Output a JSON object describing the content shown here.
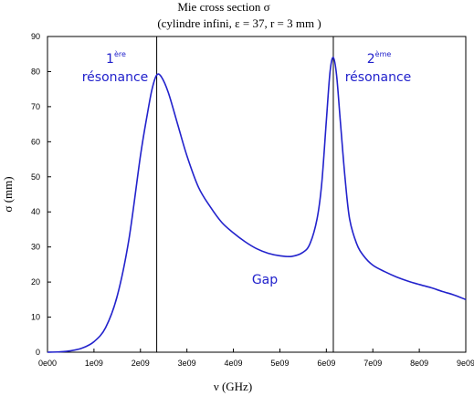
{
  "chart_data": {
    "type": "line",
    "title": "Mie cross section σ",
    "subtitle": "(cylindre infini,  ε = 37, r  = 3 mm )",
    "xlabel": "ν (GHz)",
    "ylabel": "σ (mm)",
    "xlim": [
      0,
      9000000000
    ],
    "ylim": [
      0,
      90
    ],
    "x_ticks": [
      {
        "value": 0,
        "label": "0e00"
      },
      {
        "value": 1000000000,
        "label": "1e09"
      },
      {
        "value": 2000000000,
        "label": "2e09"
      },
      {
        "value": 3000000000,
        "label": "3e09"
      },
      {
        "value": 4000000000,
        "label": "4e09"
      },
      {
        "value": 5000000000,
        "label": "5e09"
      },
      {
        "value": 6000000000,
        "label": "6e09"
      },
      {
        "value": 7000000000,
        "label": "7e09"
      },
      {
        "value": 8000000000,
        "label": "8e09"
      },
      {
        "value": 9000000000,
        "label": "9e09"
      }
    ],
    "y_ticks": [
      {
        "value": 0,
        "label": "0"
      },
      {
        "value": 10,
        "label": "10"
      },
      {
        "value": 20,
        "label": "20"
      },
      {
        "value": 30,
        "label": "30"
      },
      {
        "value": 40,
        "label": "40"
      },
      {
        "value": 50,
        "label": "50"
      },
      {
        "value": 60,
        "label": "60"
      },
      {
        "value": 70,
        "label": "70"
      },
      {
        "value": 80,
        "label": "80"
      },
      {
        "value": 90,
        "label": "90"
      }
    ],
    "grid": false,
    "series": [
      {
        "color": "#2222cc",
        "x": [
          0,
          250000000,
          500000000,
          750000000,
          1000000000,
          1250000000,
          1500000000,
          1750000000,
          2000000000,
          2150000000,
          2250000000,
          2350000000,
          2450000000,
          2600000000,
          2800000000,
          3000000000,
          3250000000,
          3500000000,
          3750000000,
          4000000000,
          4250000000,
          4500000000,
          4750000000,
          5000000000,
          5250000000,
          5500000000,
          5650000000,
          5800000000,
          5900000000,
          6000000000,
          6080000000,
          6150000000,
          6220000000,
          6300000000,
          6400000000,
          6500000000,
          6650000000,
          6800000000,
          7000000000,
          7250000000,
          7500000000,
          7750000000,
          8000000000,
          8250000000,
          8500000000,
          8750000000,
          9000000000
        ],
        "y": [
          0,
          0.1,
          0.4,
          1.2,
          3,
          7,
          16,
          32,
          56,
          68,
          75,
          79,
          78.5,
          74,
          65,
          56,
          47,
          41.5,
          37,
          34,
          31.5,
          29.5,
          28.2,
          27.5,
          27.3,
          28.5,
          31,
          38,
          48,
          66,
          80,
          84,
          79,
          66,
          50,
          38,
          31,
          27.5,
          24.8,
          23,
          21.5,
          20.3,
          19.3,
          18.4,
          17.3,
          16.3,
          15
        ]
      }
    ],
    "vertical_lines": [
      {
        "x": 2350000000,
        "color": "#000000"
      },
      {
        "x": 6150000000,
        "color": "#000000"
      }
    ],
    "annotations": [
      {
        "num": "1",
        "sup": "ère",
        "text": "résonance",
        "color": "#2222cc"
      },
      {
        "num": "2",
        "sup": "ème",
        "text": "résonance",
        "color": "#2222cc"
      },
      {
        "text": "Gap",
        "color": "#2222cc"
      }
    ]
  }
}
